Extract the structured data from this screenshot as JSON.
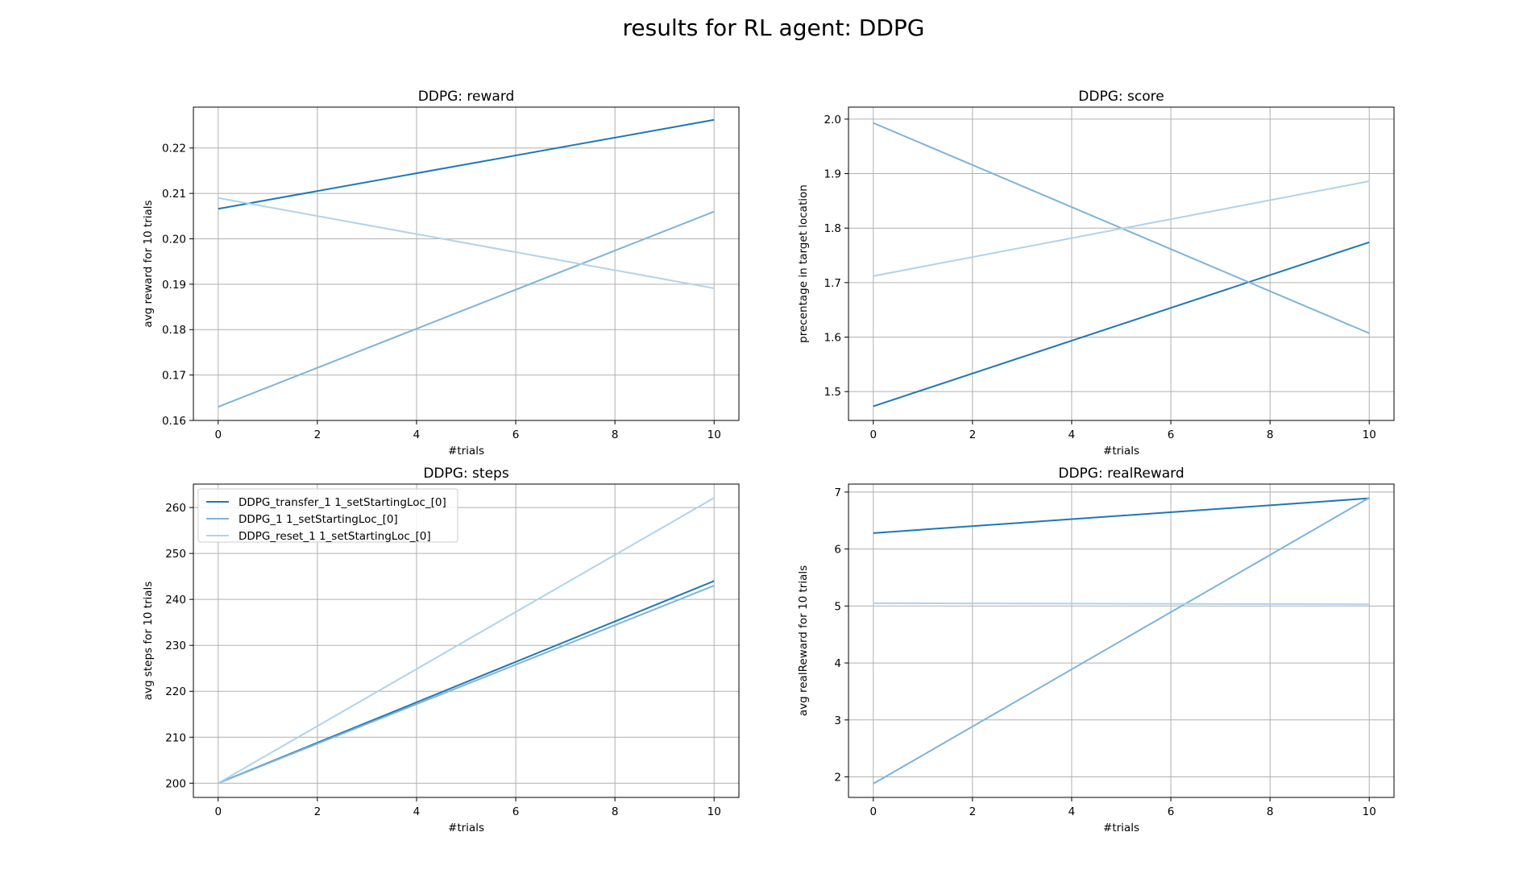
{
  "figure_title": "results for RL agent: DDPG",
  "colors": {
    "series_0": "#1f77b4",
    "series_1": "#7fb3d8",
    "series_2": "#b0d3ea"
  },
  "chart_data": [
    {
      "type": "line",
      "title": "DDPG: reward",
      "xlabel": "#trials",
      "ylabel": "avg reward for 10 trials",
      "x": [
        0,
        10
      ],
      "xlim": [
        -0.5,
        10.5
      ],
      "ylim": [
        0.16,
        0.229
      ],
      "xticks": [
        0,
        2,
        4,
        6,
        8,
        10
      ],
      "yticks": [
        0.16,
        0.17,
        0.18,
        0.19,
        0.2,
        0.21,
        0.22
      ],
      "ytick_labels": [
        "0.16",
        "0.17",
        "0.18",
        "0.19",
        "0.20",
        "0.21",
        "0.22"
      ],
      "grid": true,
      "series": [
        {
          "values": [
            0.2066,
            0.2262
          ]
        },
        {
          "values": [
            0.163,
            0.206
          ]
        },
        {
          "values": [
            0.209,
            0.1891
          ]
        }
      ]
    },
    {
      "type": "line",
      "title": "DDPG: score",
      "xlabel": "#trials",
      "ylabel": "precentage in target location",
      "x": [
        0,
        10
      ],
      "xlim": [
        -0.5,
        10.5
      ],
      "ylim": [
        1.447,
        2.022
      ],
      "xticks": [
        0,
        2,
        4,
        6,
        8,
        10
      ],
      "yticks": [
        1.5,
        1.6,
        1.7,
        1.8,
        1.9,
        2.0
      ],
      "ytick_labels": [
        "1.5",
        "1.6",
        "1.7",
        "1.8",
        "1.9",
        "2.0"
      ],
      "grid": true,
      "series": [
        {
          "values": [
            1.473,
            1.774
          ]
        },
        {
          "values": [
            1.993,
            1.607
          ]
        },
        {
          "values": [
            1.712,
            1.886
          ]
        }
      ]
    },
    {
      "type": "line",
      "title": "DDPG: steps",
      "xlabel": "#trials",
      "ylabel": "avg steps for 10 trials",
      "x": [
        0,
        10
      ],
      "xlim": [
        -0.5,
        10.5
      ],
      "ylim": [
        196.9,
        265.1
      ],
      "xticks": [
        0,
        2,
        4,
        6,
        8,
        10
      ],
      "yticks": [
        200,
        210,
        220,
        230,
        240,
        250,
        260
      ],
      "ytick_labels": [
        "200",
        "210",
        "220",
        "230",
        "240",
        "250",
        "260"
      ],
      "grid": true,
      "legend": "upper-left",
      "series": [
        {
          "name": "DDPG_transfer_1 1_setStartingLoc_[0]",
          "values": [
            200.0,
            244.0
          ]
        },
        {
          "name": "DDPG_1 1_setStartingLoc_[0]",
          "values": [
            200.0,
            243.0
          ]
        },
        {
          "name": "DDPG_reset_1 1_setStartingLoc_[0]",
          "values": [
            200.0,
            262.1
          ]
        }
      ]
    },
    {
      "type": "line",
      "title": "DDPG: realReward",
      "xlabel": "#trials",
      "ylabel": "avg realReward for 10 trials",
      "x": [
        0,
        10
      ],
      "xlim": [
        -0.5,
        10.5
      ],
      "ylim": [
        1.64,
        7.14
      ],
      "xticks": [
        0,
        2,
        4,
        6,
        8,
        10
      ],
      "yticks": [
        2,
        3,
        4,
        5,
        6,
        7
      ],
      "ytick_labels": [
        "2",
        "3",
        "4",
        "5",
        "6",
        "7"
      ],
      "grid": true,
      "series": [
        {
          "values": [
            6.28,
            6.89
          ]
        },
        {
          "values": [
            1.88,
            6.9
          ]
        },
        {
          "values": [
            5.05,
            5.03
          ]
        }
      ]
    }
  ]
}
